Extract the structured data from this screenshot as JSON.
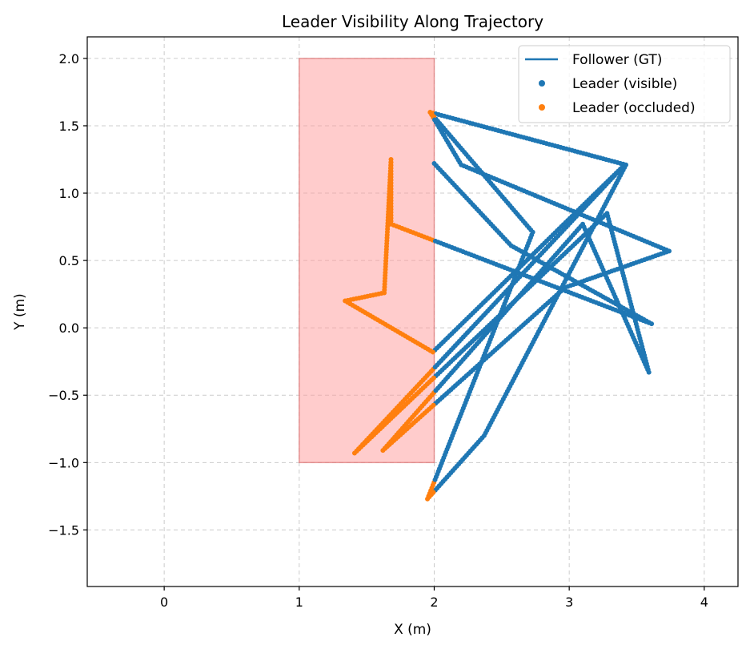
{
  "chart_data": {
    "type": "scatter",
    "title": "Leader Visibility Along Trajectory",
    "xlabel": "X (m)",
    "ylabel": "Y (m)",
    "xlim": [
      -0.57,
      4.25
    ],
    "ylim": [
      -1.92,
      2.16
    ],
    "xticks": [
      0,
      1,
      2,
      3,
      4
    ],
    "yticks": [
      -1.5,
      -1.0,
      -0.5,
      0.0,
      0.5,
      1.0,
      1.5,
      2.0
    ],
    "xtick_labels": [
      "0",
      "1",
      "2",
      "3",
      "4"
    ],
    "ytick_labels": [
      "−1.5",
      "−1.0",
      "−0.5",
      "0.0",
      "0.5",
      "1.0",
      "1.5",
      "2.0"
    ],
    "grid": true,
    "legend_position": "top-right",
    "occlusion_region": {
      "x": [
        1.0,
        2.0
      ],
      "y": [
        -1.0,
        2.0
      ],
      "color": "#ff9999"
    },
    "legend": [
      {
        "label": "Follower (GT)",
        "kind": "line",
        "color": "#1f77b4"
      },
      {
        "label": "Leader (visible)",
        "kind": "dot",
        "color": "#1f77b4"
      },
      {
        "label": "Leader (occluded)",
        "kind": "dot",
        "color": "#ff7f0e"
      }
    ],
    "trajectory": [
      [
        1.97,
        1.6
      ],
      [
        3.42,
        1.21
      ],
      [
        2.37,
        -0.8
      ],
      [
        1.95,
        -1.27
      ],
      [
        2.73,
        0.71
      ],
      [
        1.97,
        1.6
      ],
      [
        2.2,
        1.21
      ],
      [
        3.74,
        0.57
      ],
      [
        2.97,
        0.3
      ],
      [
        1.62,
        -0.91
      ],
      [
        3.1,
        0.77
      ],
      [
        3.59,
        -0.33
      ],
      [
        3.28,
        0.85
      ],
      [
        1.41,
        -0.93
      ],
      [
        3.41,
        1.21
      ],
      [
        1.99,
        -0.18
      ],
      [
        1.34,
        0.2
      ],
      [
        1.63,
        0.26
      ],
      [
        1.68,
        1.25
      ],
      [
        1.68,
        0.77
      ],
      [
        3.61,
        0.03
      ],
      [
        2.57,
        0.61
      ],
      [
        2.0,
        1.22
      ]
    ],
    "series": [
      {
        "name": "Leader (visible)",
        "color": "#1f77b4",
        "where": "x >= 2.0"
      },
      {
        "name": "Leader (occluded)",
        "color": "#ff7f0e",
        "where": "x < 2.0"
      }
    ]
  }
}
